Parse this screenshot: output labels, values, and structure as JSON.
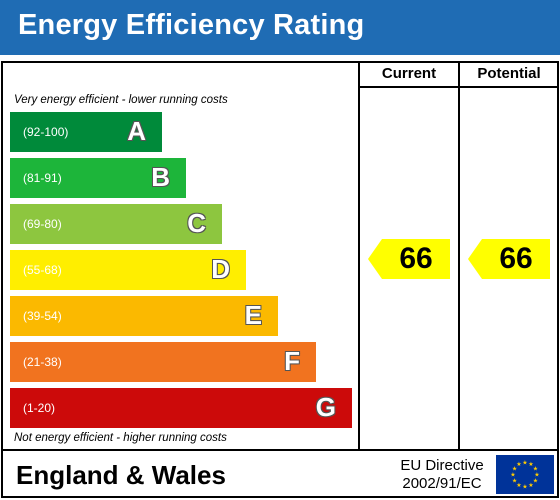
{
  "title": "Energy Efficiency Rating",
  "columns": {
    "current": "Current",
    "potential": "Potential"
  },
  "top_caption": "Very energy efficient - lower running costs",
  "bottom_caption": "Not energy efficient - higher running costs",
  "bands": [
    {
      "range": "(92-100)",
      "letter": "A",
      "color": "#008a3a"
    },
    {
      "range": "(81-91)",
      "letter": "B",
      "color": "#1db53a"
    },
    {
      "range": "(69-80)",
      "letter": "C",
      "color": "#8dc63f"
    },
    {
      "range": "(55-68)",
      "letter": "D",
      "color": "#ffee00"
    },
    {
      "range": "(39-54)",
      "letter": "E",
      "color": "#fbb900"
    },
    {
      "range": "(21-38)",
      "letter": "F",
      "color": "#f1731f"
    },
    {
      "range": "(1-20)",
      "letter": "G",
      "color": "#cc0a0a"
    }
  ],
  "ratings": {
    "current": "66",
    "potential": "66",
    "color": "#ffff00"
  },
  "footer": {
    "region": "England & Wales",
    "directive_line1": "EU Directive",
    "directive_line2": "2002/91/EC"
  },
  "flag": {
    "icon": "eu-flag-icon",
    "background": "#003399",
    "stars": "#ffcc00"
  }
}
